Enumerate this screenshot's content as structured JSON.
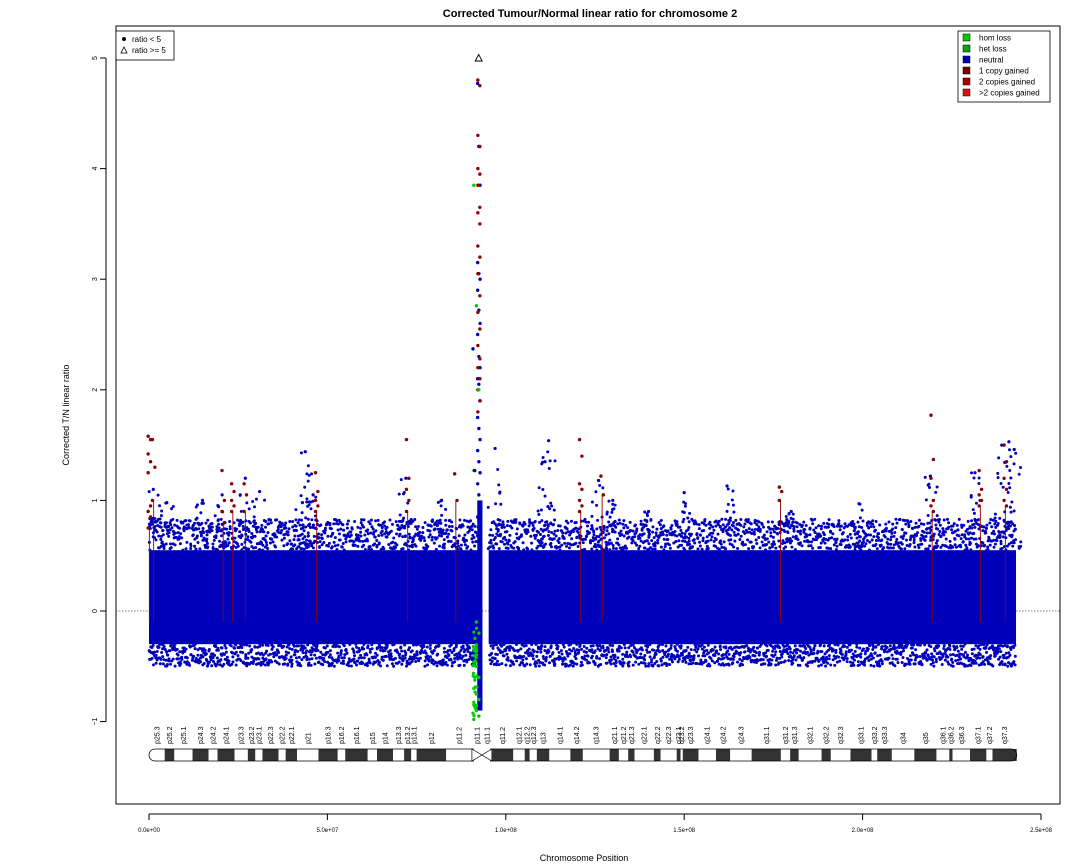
{
  "chart_data": {
    "type": "scatter",
    "title": "Corrected Tumour/Normal linear ratio for chromosome  2",
    "xlabel": "Chromosome Position",
    "ylabel": "Corrected T/N linear ratio",
    "xlim": [
      0,
      250000000
    ],
    "ylim": [
      -1.75,
      5.2
    ],
    "x_ticks": [
      0,
      50000000,
      100000000,
      150000000,
      200000000,
      250000000
    ],
    "x_tick_labels": [
      "0.0e+00",
      "5.0e+07",
      "1.0e+08",
      "1.5e+08",
      "2.0e+08",
      "2.5e+08"
    ],
    "y_ticks": [
      -1,
      0,
      1,
      2,
      3,
      4,
      5
    ],
    "y_tick_labels": [
      "−1",
      "0",
      "1",
      "2",
      "3",
      "4",
      "5"
    ],
    "reference_line_y": 0,
    "shape_legend": {
      "position": "top-left",
      "entries": [
        {
          "symbol": "filled-circle",
          "label": "ratio < 5"
        },
        {
          "symbol": "open-triangle",
          "label": "ratio >= 5"
        }
      ]
    },
    "legend": {
      "position": "top-right",
      "entries": [
        {
          "label": "hom loss",
          "color": "#00cc00"
        },
        {
          "label": "het loss",
          "color": "#00aa00"
        },
        {
          "label": "neutral",
          "color": "#0000bb"
        },
        {
          "label": "1 copy gained",
          "color": "#770000"
        },
        {
          "label": "2 copies gained",
          "color": "#aa0000"
        },
        {
          "label": ">2 copies gained",
          "color": "#dd1111"
        }
      ]
    },
    "colors": {
      "neutral": "#0000bb",
      "gain": "#8b0000",
      "loss": "#00cc00",
      "refline": "#555555"
    },
    "neutral_band": {
      "x_range": [
        0,
        243000000
      ],
      "gap": [
        92500000,
        95200000
      ],
      "y_core": [
        -0.3,
        0.55
      ],
      "y_floor": -0.5
    },
    "neutral_peaks": [
      {
        "x": 1200000,
        "y": 1.1
      },
      {
        "x": 5000000,
        "y": 0.98
      },
      {
        "x": 15000000,
        "y": 1.0
      },
      {
        "x": 20500000,
        "y": 1.05
      },
      {
        "x": 27000000,
        "y": 1.2
      },
      {
        "x": 31000000,
        "y": 1.08
      },
      {
        "x": 43000000,
        "y": 0.98
      },
      {
        "x": 43800000,
        "y": 1.44
      },
      {
        "x": 46000000,
        "y": 1.05
      },
      {
        "x": 72000000,
        "y": 1.2
      },
      {
        "x": 82000000,
        "y": 1.0
      },
      {
        "x": 97000000,
        "y": 1.47
      },
      {
        "x": 111000000,
        "y": 1.35
      },
      {
        "x": 112000000,
        "y": 1.54
      },
      {
        "x": 126000000,
        "y": 1.18
      },
      {
        "x": 130000000,
        "y": 1.0
      },
      {
        "x": 140000000,
        "y": 0.9
      },
      {
        "x": 150000000,
        "y": 1.07
      },
      {
        "x": 162000000,
        "y": 1.13
      },
      {
        "x": 180000000,
        "y": 0.9
      },
      {
        "x": 199000000,
        "y": 0.97
      },
      {
        "x": 219000000,
        "y": 1.22
      },
      {
        "x": 231500000,
        "y": 1.25
      },
      {
        "x": 239000000,
        "y": 1.5
      },
      {
        "x": 241000000,
        "y": 1.53
      },
      {
        "x": 242500000,
        "y": 1.46
      }
    ],
    "gain_regions": [
      {
        "x": 100000,
        "ys": [
          1.58,
          1.55,
          1.42,
          1.35,
          1.25,
          0.95,
          0.9,
          0.85,
          0.75
        ]
      },
      {
        "x": 1300000,
        "ys": [
          1.55,
          1.3,
          1.0
        ]
      },
      {
        "x": 20800000,
        "ys": [
          1.27,
          1.0,
          0.9,
          0.8
        ]
      },
      {
        "x": 23500000,
        "ys": [
          1.15,
          1.08,
          1.0,
          0.95,
          0.9
        ]
      },
      {
        "x": 27000000,
        "ys": [
          1.15,
          1.05,
          0.9
        ]
      },
      {
        "x": 47000000,
        "ys": [
          1.25,
          1.08,
          1.0,
          0.95,
          0.9
        ]
      },
      {
        "x": 72500000,
        "ys": [
          1.55,
          1.2,
          1.1,
          1.0,
          0.9
        ]
      },
      {
        "x": 86000000,
        "ys": [
          1.24,
          1.0
        ]
      },
      {
        "x": 121000000,
        "ys": [
          1.55,
          1.4,
          1.15,
          1.1,
          1.0,
          0.95,
          0.9
        ]
      },
      {
        "x": 127000000,
        "ys": [
          1.22,
          1.05
        ]
      },
      {
        "x": 177000000,
        "ys": [
          1.12,
          1.08,
          1.0
        ]
      },
      {
        "x": 219500000,
        "ys": [
          1.77,
          1.37,
          1.2,
          1.0,
          0.95,
          0.9
        ]
      },
      {
        "x": 233000000,
        "ys": [
          1.27,
          1.1,
          1.05,
          1.0,
          0.95
        ]
      },
      {
        "x": 240000000,
        "ys": [
          1.5,
          1.35,
          1.2,
          1.1,
          1.0,
          0.95
        ]
      }
    ],
    "centromere_points": {
      "x_range": [
        92000000,
        92900000
      ],
      "gain": [
        4.8,
        4.75,
        4.3,
        4.2,
        4.0,
        3.95,
        3.85,
        3.65,
        3.6,
        3.5,
        3.3,
        3.2,
        3.05,
        2.85,
        2.7,
        2.55,
        2.4,
        2.28,
        2.2,
        2.1,
        2.0,
        1.9,
        1.8
      ],
      "neutral": [
        4.77,
        4.2,
        3.85,
        3.15,
        3.05,
        3.0,
        2.9,
        2.72,
        2.6,
        2.5,
        2.3,
        2.2,
        2.1,
        2.05,
        1.9,
        1.75,
        1.65,
        1.55,
        1.45,
        1.35,
        1.25,
        1.15,
        1.05,
        0.95,
        0.85
      ],
      "loss": [
        3.85,
        2.76,
        2.0,
        1.27,
        -0.1,
        -0.2,
        -0.35,
        -0.5,
        -0.6,
        -0.7,
        -0.75,
        -0.8,
        -0.85,
        -0.9,
        -0.95,
        -0.98
      ]
    },
    "outlier_neutral": [
      {
        "x": 90800000,
        "y": 2.37
      },
      {
        "x": 91300000,
        "y": 1.27
      }
    ],
    "outlier_high": {
      "x": 92400000,
      "y": 5.0,
      "symbol": "open-triangle"
    },
    "ideogram": {
      "bands": [
        {
          "name": "p25.3",
          "start": 0,
          "end": 4400000,
          "stain": "gneg"
        },
        {
          "name": "p25.2",
          "start": 4400000,
          "end": 7100000,
          "stain": "gpos"
        },
        {
          "name": "p25.1",
          "start": 7100000,
          "end": 12200000,
          "stain": "gneg"
        },
        {
          "name": "p24.3",
          "start": 12200000,
          "end": 16700000,
          "stain": "gpos"
        },
        {
          "name": "p24.2",
          "start": 16700000,
          "end": 19200000,
          "stain": "gneg"
        },
        {
          "name": "p24.1",
          "start": 19200000,
          "end": 24000000,
          "stain": "gpos"
        },
        {
          "name": "p23.3",
          "start": 24000000,
          "end": 27700000,
          "stain": "gneg"
        },
        {
          "name": "p23.2",
          "start": 27700000,
          "end": 29800000,
          "stain": "gpos"
        },
        {
          "name": "p23.1",
          "start": 29800000,
          "end": 31800000,
          "stain": "gneg"
        },
        {
          "name": "p22.3",
          "start": 31800000,
          "end": 36300000,
          "stain": "gpos"
        },
        {
          "name": "p22.2",
          "start": 36300000,
          "end": 38300000,
          "stain": "gneg"
        },
        {
          "name": "p22.1",
          "start": 38300000,
          "end": 41500000,
          "stain": "gpos"
        },
        {
          "name": "p21",
          "start": 41500000,
          "end": 47500000,
          "stain": "gneg"
        },
        {
          "name": "p16.3",
          "start": 47500000,
          "end": 52900000,
          "stain": "gpos"
        },
        {
          "name": "p16.2",
          "start": 52900000,
          "end": 55000000,
          "stain": "gneg"
        },
        {
          "name": "p16.1",
          "start": 55000000,
          "end": 61300000,
          "stain": "gpos"
        },
        {
          "name": "p15",
          "start": 61300000,
          "end": 63900000,
          "stain": "gneg"
        },
        {
          "name": "p14",
          "start": 63900000,
          "end": 68400000,
          "stain": "gpos"
        },
        {
          "name": "p13.3",
          "start": 68400000,
          "end": 71500000,
          "stain": "gneg"
        },
        {
          "name": "p13.2",
          "start": 71500000,
          "end": 73500000,
          "stain": "gpos"
        },
        {
          "name": "p13.1",
          "start": 73500000,
          "end": 75000000,
          "stain": "gneg"
        },
        {
          "name": "p12",
          "start": 75000000,
          "end": 83300000,
          "stain": "gpos"
        },
        {
          "name": "p11.2",
          "start": 83300000,
          "end": 90500000,
          "stain": "gneg"
        },
        {
          "name": "p11.1",
          "start": 90500000,
          "end": 93300000,
          "stain": "acen"
        },
        {
          "name": "q11.1",
          "start": 93300000,
          "end": 96100000,
          "stain": "acen"
        },
        {
          "name": "q11.2",
          "start": 96100000,
          "end": 102100000,
          "stain": "gpos"
        },
        {
          "name": "q12.1",
          "start": 102100000,
          "end": 105300000,
          "stain": "gneg"
        },
        {
          "name": "q12.2",
          "start": 105300000,
          "end": 106700000,
          "stain": "gpos"
        },
        {
          "name": "q12.3",
          "start": 106700000,
          "end": 108700000,
          "stain": "gneg"
        },
        {
          "name": "q13",
          "start": 108700000,
          "end": 112200000,
          "stain": "gpos"
        },
        {
          "name": "q14.1",
          "start": 112200000,
          "end": 118100000,
          "stain": "gneg"
        },
        {
          "name": "q14.2",
          "start": 118100000,
          "end": 121600000,
          "stain": "gpos"
        },
        {
          "name": "q14.3",
          "start": 121600000,
          "end": 129100000,
          "stain": "gneg"
        },
        {
          "name": "q21.1",
          "start": 129100000,
          "end": 131700000,
          "stain": "gpos"
        },
        {
          "name": "q21.2",
          "start": 131700000,
          "end": 134300000,
          "stain": "gneg"
        },
        {
          "name": "q21.3",
          "start": 134300000,
          "end": 136100000,
          "stain": "gpos"
        },
        {
          "name": "q22.1",
          "start": 136100000,
          "end": 141500000,
          "stain": "gneg"
        },
        {
          "name": "q22.2",
          "start": 141500000,
          "end": 143400000,
          "stain": "gpos"
        },
        {
          "name": "q22.3",
          "start": 143400000,
          "end": 147900000,
          "stain": "gneg"
        },
        {
          "name": "q23.1",
          "start": 147900000,
          "end": 149000000,
          "stain": "gpos"
        },
        {
          "name": "q23.2",
          "start": 149000000,
          "end": 149600000,
          "stain": "gneg"
        },
        {
          "name": "q23.3",
          "start": 149600000,
          "end": 154000000,
          "stain": "gpos"
        },
        {
          "name": "q24.1",
          "start": 154000000,
          "end": 158900000,
          "stain": "gneg"
        },
        {
          "name": "q24.2",
          "start": 158900000,
          "end": 162900000,
          "stain": "gpos"
        },
        {
          "name": "q24.3",
          "start": 162900000,
          "end": 168900000,
          "stain": "gneg"
        },
        {
          "name": "q31.1",
          "start": 168900000,
          "end": 177100000,
          "stain": "gpos"
        },
        {
          "name": "q31.2",
          "start": 177100000,
          "end": 179700000,
          "stain": "gneg"
        },
        {
          "name": "q31.3",
          "start": 179700000,
          "end": 182100000,
          "stain": "gpos"
        },
        {
          "name": "q32.1",
          "start": 182100000,
          "end": 188500000,
          "stain": "gneg"
        },
        {
          "name": "q32.2",
          "start": 188500000,
          "end": 191100000,
          "stain": "gpos"
        },
        {
          "name": "q32.3",
          "start": 191100000,
          "end": 196600000,
          "stain": "gneg"
        },
        {
          "name": "q33.1",
          "start": 196600000,
          "end": 202500000,
          "stain": "gpos"
        },
        {
          "name": "q33.2",
          "start": 202500000,
          "end": 204100000,
          "stain": "gneg"
        },
        {
          "name": "q33.3",
          "start": 204100000,
          "end": 208200000,
          "stain": "gpos"
        },
        {
          "name": "q34",
          "start": 208200000,
          "end": 214500000,
          "stain": "gneg"
        },
        {
          "name": "q35",
          "start": 214500000,
          "end": 220700000,
          "stain": "gpos"
        },
        {
          "name": "q36.1",
          "start": 220700000,
          "end": 224300000,
          "stain": "gneg"
        },
        {
          "name": "q36.2",
          "start": 224300000,
          "end": 225200000,
          "stain": "gpos"
        },
        {
          "name": "q36.3",
          "start": 225200000,
          "end": 230100000,
          "stain": "gneg"
        },
        {
          "name": "q37.1",
          "start": 230100000,
          "end": 234700000,
          "stain": "gpos"
        },
        {
          "name": "q37.2",
          "start": 234700000,
          "end": 236400000,
          "stain": "gneg"
        },
        {
          "name": "q37.3",
          "start": 236400000,
          "end": 243200000,
          "stain": "gpos"
        }
      ]
    }
  }
}
